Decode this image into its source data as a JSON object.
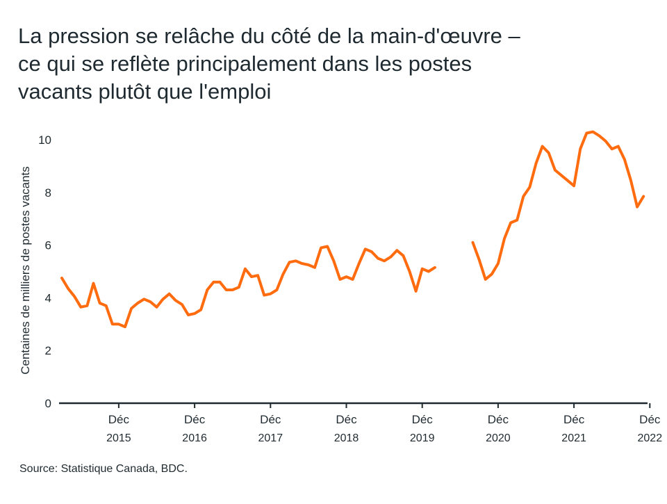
{
  "title_lines": [
    "La pression se relâche du côté de la main-d'œuvre –",
    "ce qui se reflète principalement dans les postes",
    "vacants plutôt que l'emploi"
  ],
  "source": "Source: Statistique Canada, BDC.",
  "colors": {
    "line": "#ff6b0f",
    "axis": "#1f2a30",
    "text": "#1f2a30"
  },
  "chart_data": {
    "type": "line",
    "title": "",
    "ylabel": "Centaines de milliers de postes vacants",
    "xlabel": "",
    "ylim": [
      0,
      10.5
    ],
    "yticks": [
      0,
      2,
      4,
      6,
      8,
      10
    ],
    "grid": false,
    "xticks": [
      {
        "month_index": 9,
        "label": "Déc",
        "year": "2015"
      },
      {
        "month_index": 21,
        "label": "Déc",
        "year": "2016"
      },
      {
        "month_index": 33,
        "label": "Déc",
        "year": "2017"
      },
      {
        "month_index": 45,
        "label": "Déc",
        "year": "2018"
      },
      {
        "month_index": 57,
        "label": "Déc",
        "year": "2019"
      },
      {
        "month_index": 69,
        "label": "Déc",
        "year": "2020"
      },
      {
        "month_index": 81,
        "label": "Déc",
        "year": "2021"
      },
      {
        "month_index": 93,
        "label": "Déc",
        "year": "2022"
      }
    ],
    "series": [
      {
        "segments": [
          {
            "start_index": 0,
            "values": [
              4.75,
              4.35,
              4.05,
              3.65,
              3.7,
              4.55,
              3.8,
              3.7,
              3.0,
              3.0,
              2.9,
              3.6,
              3.8,
              3.95,
              3.85,
              3.65,
              3.95,
              4.15,
              3.9,
              3.75,
              3.35,
              3.4,
              3.55,
              4.3,
              4.6,
              4.6,
              4.3,
              4.3,
              4.4,
              5.1,
              4.8,
              4.85,
              4.1,
              4.15,
              4.3,
              4.9,
              5.35,
              5.4,
              5.3,
              5.25,
              5.15,
              5.9,
              5.95,
              5.4,
              4.7,
              4.8,
              4.7,
              5.3,
              5.85,
              5.75,
              5.5,
              5.4,
              5.55,
              5.8,
              5.6,
              5.0,
              4.25,
              5.1,
              5.0,
              5.15
            ]
          },
          {
            "start_index": 65,
            "values": [
              6.1,
              5.45,
              4.7,
              4.9,
              5.3,
              6.25,
              6.85,
              6.95,
              7.85,
              8.2,
              9.1,
              9.75,
              9.5,
              8.85,
              8.65,
              8.45,
              8.25,
              9.65,
              10.25,
              10.3,
              10.15,
              9.95,
              9.65,
              9.75,
              9.25,
              8.45,
              7.45,
              7.85
            ]
          }
        ]
      }
    ]
  }
}
